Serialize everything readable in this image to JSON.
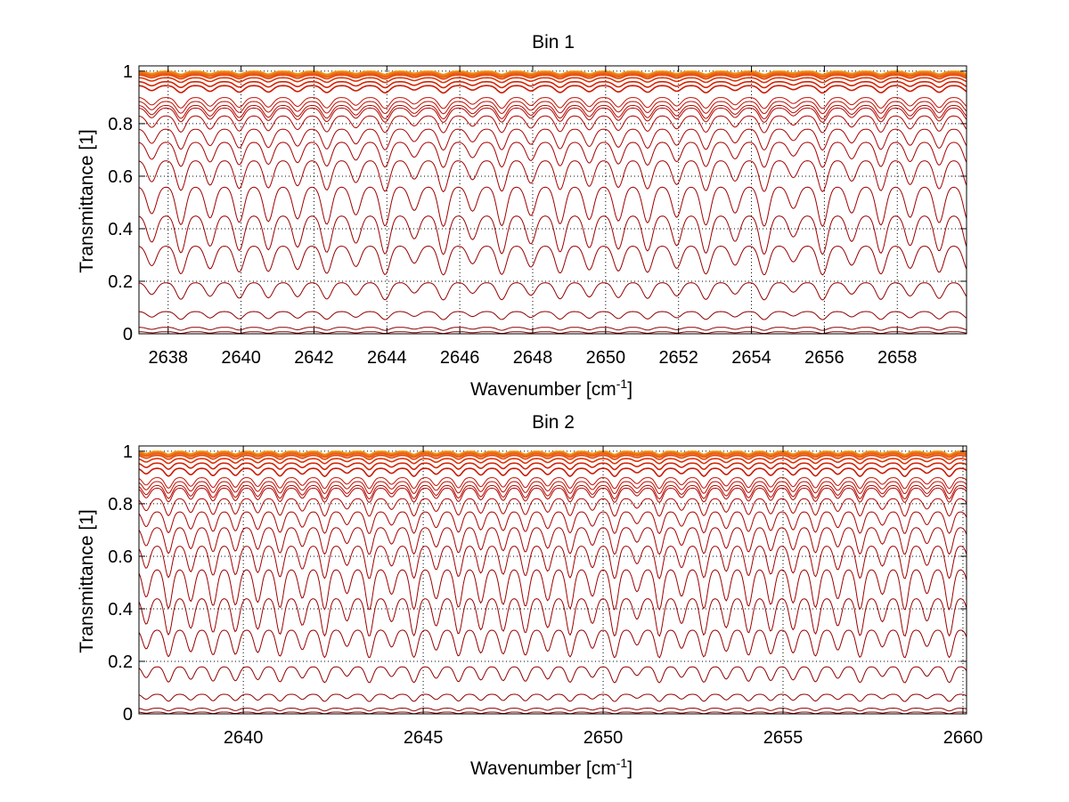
{
  "chart_data": [
    {
      "type": "line",
      "title": "Bin 1",
      "xlabel": "Wavenumber [cm",
      "xlabel_superscript": "-1",
      "xlabel_suffix": "]",
      "ylabel": "Transmittance [1]",
      "xlim": [
        2637.2,
        2659.9
      ],
      "ylim": [
        0,
        1.02
      ],
      "xticks": [
        2638,
        2640,
        2642,
        2644,
        2646,
        2648,
        2650,
        2652,
        2654,
        2656,
        2658
      ],
      "xtick_labels": [
        "2638",
        "2640",
        "2642",
        "2644",
        "2646",
        "2648",
        "2650",
        "2652",
        "2654",
        "2656",
        "2658"
      ],
      "yticks": [
        0,
        0.2,
        0.4,
        0.6,
        0.8,
        1
      ],
      "ytick_labels": [
        "0",
        "0.2",
        "0.4",
        "0.6",
        "0.8",
        "1"
      ],
      "grid": true,
      "grid_style": "dotted",
      "line_spacing_cm1": 0.8,
      "line_phase_cm1": 2637.55,
      "baselines": [
        1.0,
        0.997,
        0.994,
        0.99,
        0.985,
        0.975,
        0.96,
        0.945,
        0.9,
        0.885,
        0.87,
        0.86,
        0.83,
        0.78,
        0.73,
        0.66,
        0.56,
        0.45,
        0.335,
        0.195,
        0.085,
        0.025,
        0.008
      ],
      "series_colors": [
        "#f0a020",
        "#ee8a18",
        "#ec7214",
        "#e85a10",
        "#e4460c",
        "#dd3208",
        "#d42406",
        "#cc1a04",
        "#c21002",
        "#bc0c02",
        "#b80800",
        "#b40600",
        "#b00400",
        "#ac0200",
        "#a80000",
        "#a40000",
        "#a00000",
        "#9c0000",
        "#980000",
        "#940000",
        "#900000",
        "#8c0000",
        "#880000"
      ]
    },
    {
      "type": "line",
      "title": "Bin 2",
      "xlabel": "Wavenumber [cm",
      "xlabel_superscript": "-1",
      "xlabel_suffix": "]",
      "ylabel": "Transmittance [1]",
      "xlim": [
        2637.1,
        2660.1
      ],
      "ylim": [
        0,
        1.02
      ],
      "xticks": [
        2640,
        2645,
        2650,
        2655,
        2660
      ],
      "xtick_labels": [
        "2640",
        "2645",
        "2650",
        "2655",
        "2660"
      ],
      "yticks": [
        0,
        0.2,
        0.4,
        0.6,
        0.8,
        1
      ],
      "ytick_labels": [
        "0",
        "0.2",
        "0.4",
        "0.6",
        "0.8",
        "1"
      ],
      "grid": true,
      "grid_style": "dotted",
      "line_spacing_cm1": 0.62,
      "line_phase_cm1": 2637.3,
      "baselines": [
        1.0,
        0.997,
        0.994,
        0.99,
        0.984,
        0.972,
        0.955,
        0.935,
        0.9,
        0.885,
        0.87,
        0.86,
        0.82,
        0.77,
        0.71,
        0.64,
        0.55,
        0.44,
        0.32,
        0.18,
        0.075,
        0.022,
        0.007
      ],
      "series_colors": [
        "#f0a020",
        "#ee8a18",
        "#ec7214",
        "#e85a10",
        "#e4460c",
        "#dd3208",
        "#d42406",
        "#cc1a04",
        "#c21002",
        "#bc0c02",
        "#b80800",
        "#b40600",
        "#b00400",
        "#ac0200",
        "#a80000",
        "#a40000",
        "#a00000",
        "#9c0000",
        "#980000",
        "#940000",
        "#900000",
        "#8c0000",
        "#880000"
      ]
    }
  ]
}
